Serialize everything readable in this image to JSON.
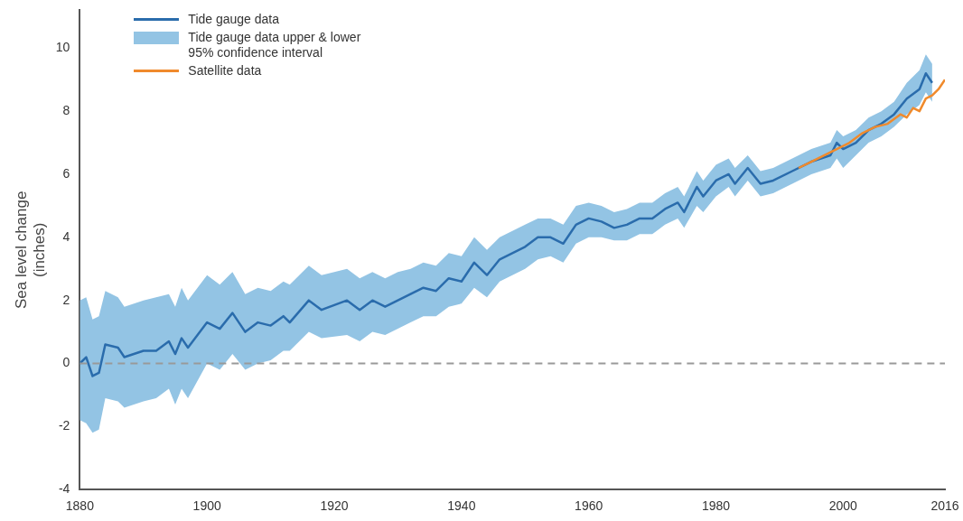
{
  "chart_data": {
    "type": "line",
    "ylabel": "Sea level change\n(inches)",
    "xlim": [
      1880,
      2016
    ],
    "xticks": [
      1880,
      1900,
      1920,
      1940,
      1960,
      1980,
      2000,
      2016
    ],
    "ylim": [
      -4,
      11.2
    ],
    "yticks": [
      -4,
      -2,
      0,
      2,
      4,
      6,
      8,
      10
    ],
    "grid": false,
    "legend": "top left",
    "marker": "none",
    "ref_lines": [
      {
        "axis": "y",
        "value": 0,
        "color": "#999999",
        "line_style": "dashed"
      }
    ],
    "annotations": [
      "Tide gauge data upper & lower\n95% confidence interval"
    ],
    "series": [
      {
        "name": "Tide gauge data",
        "color": "#2a6cac",
        "x": [
          1880,
          1881,
          1882,
          1883,
          1884,
          1886,
          1887,
          1890,
          1892,
          1894,
          1895,
          1896,
          1897,
          1900,
          1902,
          1904,
          1906,
          1908,
          1910,
          1912,
          1913,
          1916,
          1918,
          1922,
          1924,
          1926,
          1928,
          1930,
          1932,
          1934,
          1936,
          1938,
          1940,
          1942,
          1944,
          1946,
          1948,
          1950,
          1952,
          1954,
          1956,
          1958,
          1960,
          1962,
          1964,
          1966,
          1968,
          1970,
          1972,
          1974,
          1975,
          1977,
          1978,
          1980,
          1982,
          1983,
          1985,
          1987,
          1989,
          1992,
          1995,
          1998,
          1999,
          2000,
          2002,
          2004,
          2006,
          2008,
          2010,
          2012,
          2013,
          2014
        ],
        "values": [
          0.0,
          0.2,
          -0.4,
          -0.3,
          0.6,
          0.5,
          0.2,
          0.4,
          0.4,
          0.7,
          0.3,
          0.8,
          0.5,
          1.3,
          1.1,
          1.6,
          1.0,
          1.3,
          1.2,
          1.5,
          1.3,
          2.0,
          1.7,
          2.0,
          1.7,
          2.0,
          1.8,
          2.0,
          2.2,
          2.4,
          2.3,
          2.7,
          2.6,
          3.2,
          2.8,
          3.3,
          3.5,
          3.7,
          4.0,
          4.0,
          3.8,
          4.4,
          4.6,
          4.5,
          4.3,
          4.4,
          4.6,
          4.6,
          4.9,
          5.1,
          4.8,
          5.6,
          5.3,
          5.8,
          6.0,
          5.7,
          6.2,
          5.7,
          5.8,
          6.1,
          6.4,
          6.6,
          7.0,
          6.8,
          7.0,
          7.4,
          7.6,
          7.9,
          8.4,
          8.7,
          9.2,
          8.9
        ],
        "lower": [
          -1.8,
          -1.9,
          -2.2,
          -2.1,
          -1.1,
          -1.2,
          -1.4,
          -1.2,
          -1.1,
          -0.8,
          -1.3,
          -0.8,
          -1.1,
          0.0,
          -0.2,
          0.3,
          -0.2,
          0.0,
          0.1,
          0.4,
          0.4,
          1.0,
          0.8,
          0.9,
          0.7,
          1.0,
          0.9,
          1.1,
          1.3,
          1.5,
          1.5,
          1.8,
          1.9,
          2.4,
          2.1,
          2.6,
          2.8,
          3.0,
          3.3,
          3.4,
          3.2,
          3.8,
          4.0,
          4.0,
          3.9,
          3.9,
          4.1,
          4.1,
          4.4,
          4.6,
          4.3,
          5.0,
          4.8,
          5.3,
          5.6,
          5.3,
          5.8,
          5.3,
          5.4,
          5.7,
          6.0,
          6.2,
          6.5,
          6.2,
          6.6,
          7.0,
          7.2,
          7.5,
          7.9,
          8.2,
          8.6,
          8.3
        ],
        "upper": [
          2.0,
          2.1,
          1.4,
          1.5,
          2.3,
          2.1,
          1.8,
          2.0,
          2.1,
          2.2,
          1.8,
          2.4,
          2.0,
          2.8,
          2.5,
          2.9,
          2.2,
          2.4,
          2.3,
          2.6,
          2.5,
          3.1,
          2.8,
          3.0,
          2.7,
          2.9,
          2.7,
          2.9,
          3.0,
          3.2,
          3.1,
          3.5,
          3.4,
          4.0,
          3.6,
          4.0,
          4.2,
          4.4,
          4.6,
          4.6,
          4.4,
          5.0,
          5.1,
          5.0,
          4.8,
          4.9,
          5.1,
          5.1,
          5.4,
          5.6,
          5.3,
          6.1,
          5.8,
          6.3,
          6.5,
          6.2,
          6.6,
          6.1,
          6.2,
          6.5,
          6.8,
          7.0,
          7.4,
          7.2,
          7.4,
          7.8,
          8.0,
          8.3,
          8.9,
          9.3,
          9.8,
          9.5
        ]
      },
      {
        "name": "Satellite data",
        "color": "#f08a2c",
        "x": [
          1993,
          1995,
          1997,
          1999,
          2001,
          2003,
          2005,
          2007,
          2009,
          2010,
          2011,
          2012,
          2013,
          2014,
          2015,
          2016
        ],
        "values": [
          6.2,
          6.4,
          6.6,
          6.8,
          7.0,
          7.3,
          7.5,
          7.6,
          7.9,
          7.8,
          8.1,
          8.0,
          8.4,
          8.5,
          8.7,
          9.0
        ]
      }
    ]
  }
}
